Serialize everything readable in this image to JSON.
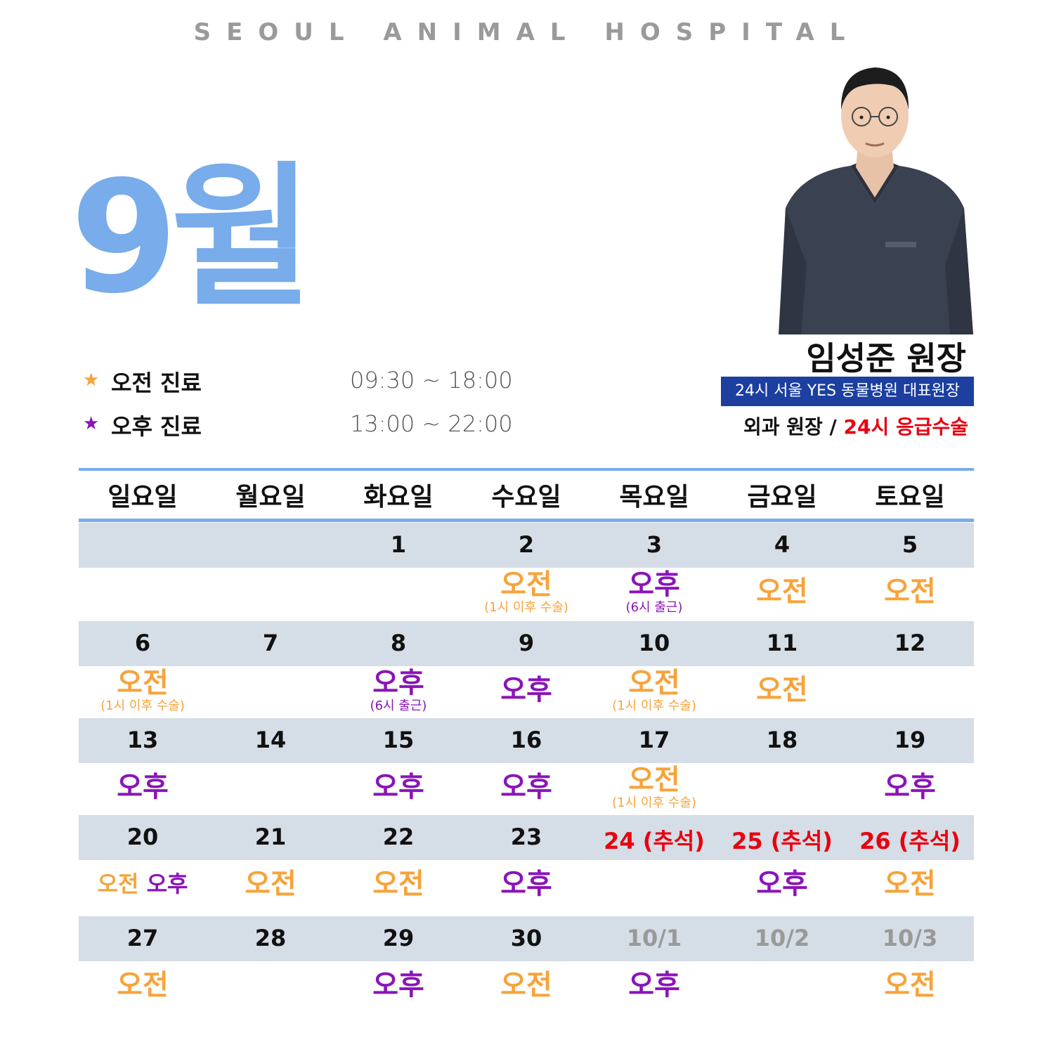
{
  "brand": "SEOUL ANIMAL HOSPITAL",
  "month": "9월",
  "hours": {
    "am": {
      "star": "★",
      "label": "오전 진료",
      "time": "09:30 ~ 18:00",
      "color": "#f7a33a"
    },
    "pm": {
      "star": "★",
      "label": "오후 진료",
      "time": "13:00 ~ 22:00",
      "color": "#8a14b8"
    }
  },
  "doctor": {
    "name": "임성준 원장",
    "title": "24시 서울 YES 동물병원 대표원장",
    "spec_a": "외과 원장 / ",
    "spec_b": "24시 응급수술"
  },
  "weekdays": [
    "일요일",
    "월요일",
    "화요일",
    "수요일",
    "목요일",
    "금요일",
    "토요일"
  ],
  "weeks": [
    [
      {
        "date": ""
      },
      {
        "date": ""
      },
      {
        "date": "1"
      },
      {
        "date": "2",
        "main": "오전",
        "type": "am",
        "note": "(1시 이후 수술)"
      },
      {
        "date": "3",
        "main": "오후",
        "type": "pm",
        "note": "(6시 출근)"
      },
      {
        "date": "4",
        "main": "오전",
        "type": "am"
      },
      {
        "date": "5",
        "main": "오전",
        "type": "am"
      }
    ],
    [
      {
        "date": "6",
        "main": "오전",
        "type": "am",
        "note": "(1시 이후 수술)"
      },
      {
        "date": "7"
      },
      {
        "date": "8",
        "main": "오후",
        "type": "pm",
        "note": "(6시 출근)"
      },
      {
        "date": "9",
        "main": "오후",
        "type": "pm"
      },
      {
        "date": "10",
        "main": "오전",
        "type": "am",
        "note": "(1시 이후 수술)"
      },
      {
        "date": "11",
        "main": "오전",
        "type": "am"
      },
      {
        "date": "12"
      }
    ],
    [
      {
        "date": "13",
        "main": "오후",
        "type": "pm"
      },
      {
        "date": "14"
      },
      {
        "date": "15",
        "main": "오후",
        "type": "pm"
      },
      {
        "date": "16",
        "main": "오후",
        "type": "pm"
      },
      {
        "date": "17",
        "main": "오전",
        "type": "am",
        "note": "(1시 이후 수술)"
      },
      {
        "date": "18"
      },
      {
        "date": "19",
        "main": "오후",
        "type": "pm"
      }
    ],
    [
      {
        "date": "20",
        "main": "오전",
        "type": "am",
        "main2": "오후",
        "type2": "pm"
      },
      {
        "date": "21",
        "main": "오전",
        "type": "am"
      },
      {
        "date": "22",
        "main": "오전",
        "type": "am"
      },
      {
        "date": "23",
        "main": "오후",
        "type": "pm"
      },
      {
        "date": "24 (추석)",
        "holiday": true
      },
      {
        "date": "25 (추석)",
        "holiday": true,
        "main": "오후",
        "type": "pm"
      },
      {
        "date": "26 (추석)",
        "holiday": true,
        "main": "오전",
        "type": "am"
      }
    ],
    [
      {
        "date": "27",
        "main": "오전",
        "type": "am"
      },
      {
        "date": "28"
      },
      {
        "date": "29",
        "main": "오후",
        "type": "pm"
      },
      {
        "date": "30",
        "main": "오전",
        "type": "am"
      },
      {
        "date": "10/1",
        "next": true,
        "main": "오후",
        "type": "pm"
      },
      {
        "date": "10/2",
        "next": true
      },
      {
        "date": "10/3",
        "next": true,
        "main": "오전",
        "type": "am"
      }
    ]
  ]
}
